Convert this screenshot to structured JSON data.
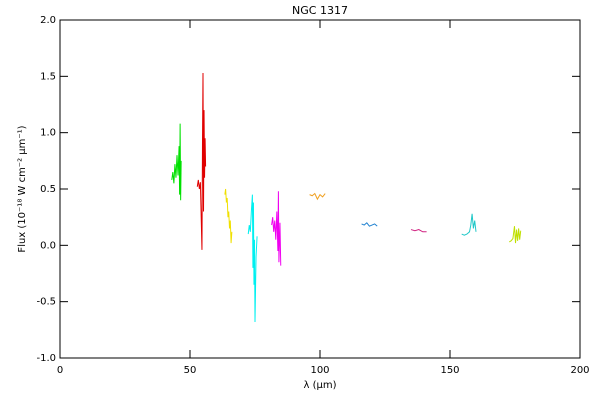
{
  "chart_data": {
    "type": "line",
    "title": "NGC 1317",
    "x_label": "λ (μm)",
    "y_label": "Flux (10⁻¹⁸ W cm⁻² μm⁻¹)",
    "xlim": [
      0,
      200
    ],
    "xticks": [
      0,
      50,
      100,
      150,
      200
    ],
    "ylim": [
      -1,
      2
    ],
    "yticks": [
      {
        "value": -1,
        "label": "-1.0"
      },
      -0.5,
      {
        "value": 0,
        "label": "0.0"
      },
      0.5,
      {
        "value": 1,
        "label": "1.0"
      },
      1.5,
      {
        "value": 2,
        "label": "2.0"
      }
    ],
    "series": [
      {
        "color": "#00e000",
        "x": [
          43.0,
          43.4,
          43.8,
          44.2,
          44.6,
          45.0,
          45.4,
          45.8,
          46.0,
          46.2,
          46.4,
          46.6
        ],
        "values": [
          0.58,
          0.65,
          0.55,
          0.72,
          0.6,
          0.8,
          0.62,
          0.88,
          0.45,
          1.08,
          0.4,
          0.75
        ]
      },
      {
        "color": "#e00000",
        "x": [
          52.8,
          53.2,
          53.6,
          54.0,
          54.6,
          54.8,
          55.0,
          55.2,
          55.4,
          55.6,
          55.8,
          56.0
        ],
        "values": [
          0.52,
          0.58,
          0.5,
          0.56,
          -0.04,
          0.9,
          1.53,
          0.3,
          1.2,
          0.6,
          0.95,
          0.7
        ]
      },
      {
        "color": "#f0e000",
        "x": [
          63.4,
          63.7,
          64.0,
          64.3,
          64.6,
          64.9,
          65.2,
          65.5,
          65.8,
          66.1
        ],
        "values": [
          0.45,
          0.5,
          0.38,
          0.42,
          0.25,
          0.3,
          0.15,
          0.22,
          0.02,
          0.12
        ]
      },
      {
        "color": "#00f0f0",
        "x": [
          72.4,
          72.8,
          73.2,
          73.6,
          74.0,
          74.2,
          74.4,
          74.6,
          74.8,
          75.0,
          75.4,
          75.8
        ],
        "values": [
          0.1,
          0.18,
          0.12,
          0.3,
          0.45,
          -0.2,
          0.38,
          -0.35,
          0.05,
          -0.68,
          -0.1,
          0.08
        ]
      },
      {
        "color": "#f000f0",
        "x": [
          81.4,
          81.8,
          82.2,
          82.6,
          83.0,
          83.4,
          83.8,
          84.0,
          84.2,
          84.6,
          84.9
        ],
        "values": [
          0.18,
          0.25,
          0.12,
          0.22,
          0.05,
          0.3,
          -0.05,
          0.48,
          -0.15,
          0.2,
          -0.18
        ]
      },
      {
        "color": "#f0a020",
        "x": [
          96,
          97,
          98,
          99,
          100,
          101,
          102
        ],
        "values": [
          0.45,
          0.44,
          0.46,
          0.41,
          0.45,
          0.43,
          0.46
        ]
      },
      {
        "color": "#1e80d0",
        "x": [
          116,
          117,
          118,
          119,
          120,
          121,
          122
        ],
        "values": [
          0.19,
          0.18,
          0.2,
          0.17,
          0.18,
          0.19,
          0.17
        ]
      },
      {
        "color": "#d02080",
        "x": [
          135,
          136.5,
          138,
          139.5,
          141
        ],
        "values": [
          0.14,
          0.13,
          0.14,
          0.12,
          0.12
        ]
      },
      {
        "color": "#20c8c8",
        "x": [
          154.5,
          155.5,
          156.5,
          157.5,
          158.0,
          158.5,
          159.0,
          159.5,
          160.0
        ],
        "values": [
          0.1,
          0.09,
          0.1,
          0.12,
          0.18,
          0.28,
          0.15,
          0.22,
          0.12
        ]
      },
      {
        "color": "#c0e000",
        "x": [
          172.8,
          173.5,
          174.2,
          174.8,
          175.2,
          175.6,
          176.0,
          176.4,
          176.8,
          177.2
        ],
        "values": [
          0.03,
          0.04,
          0.06,
          0.17,
          0.02,
          0.14,
          0.04,
          0.15,
          0.05,
          0.13
        ]
      }
    ]
  }
}
